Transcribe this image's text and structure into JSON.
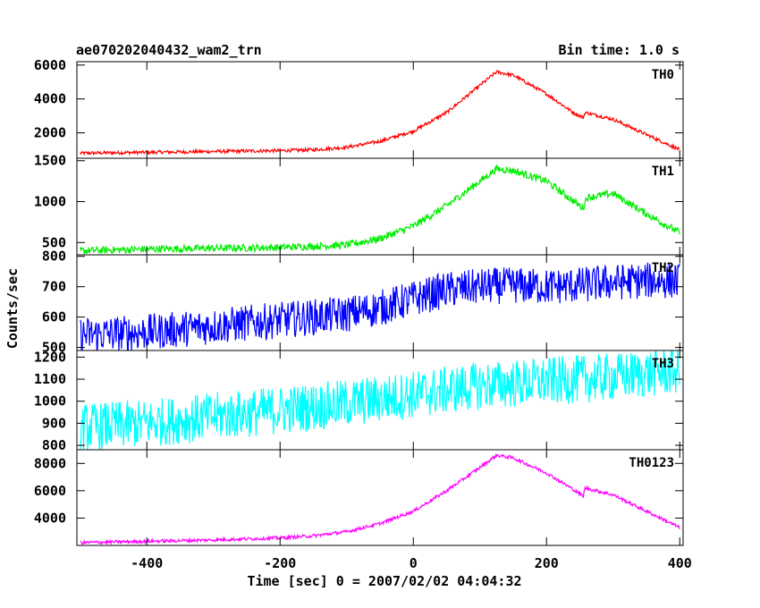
{
  "header": {
    "title": "ae070202040432_wam2_trn",
    "bin_time": "Bin time: 1.0 s"
  },
  "chart_data": {
    "type": "line",
    "xlabel": "Time [sec] 0 = 2007/02/02 04:04:32",
    "ylabel": "Counts/sec",
    "xlim": [
      -505,
      405
    ],
    "x_ticks": [
      -400,
      -200,
      0,
      200,
      400
    ],
    "grid": false,
    "legend": "none",
    "panels": [
      {
        "name": "TH0",
        "color": "#ff0000",
        "ylim": [
          500,
          6200
        ],
        "y_ticks": [
          2000,
          4000,
          6000
        ],
        "noise": 100,
        "points": [
          [
            -500,
            800
          ],
          [
            -400,
            850
          ],
          [
            -300,
            900
          ],
          [
            -200,
            950
          ],
          [
            -150,
            1000
          ],
          [
            -100,
            1150
          ],
          [
            -50,
            1500
          ],
          [
            0,
            2100
          ],
          [
            50,
            3200
          ],
          [
            100,
            4800
          ],
          [
            125,
            5600
          ],
          [
            150,
            5400
          ],
          [
            200,
            4300
          ],
          [
            240,
            3200
          ],
          [
            255,
            2900
          ],
          [
            258,
            3200
          ],
          [
            300,
            2800
          ],
          [
            350,
            1900
          ],
          [
            400,
            1000
          ]
        ]
      },
      {
        "name": "TH1",
        "color": "#00ee00",
        "ylim": [
          350,
          1530
        ],
        "y_ticks": [
          500,
          1000,
          1500
        ],
        "noise": 45,
        "points": [
          [
            -500,
            400
          ],
          [
            -400,
            420
          ],
          [
            -300,
            430
          ],
          [
            -200,
            440
          ],
          [
            -100,
            470
          ],
          [
            -50,
            550
          ],
          [
            0,
            700
          ],
          [
            50,
            950
          ],
          [
            100,
            1250
          ],
          [
            125,
            1400
          ],
          [
            150,
            1380
          ],
          [
            200,
            1250
          ],
          [
            250,
            950
          ],
          [
            255,
            920
          ],
          [
            260,
            1050
          ],
          [
            300,
            1100
          ],
          [
            350,
            850
          ],
          [
            400,
            620
          ]
        ]
      },
      {
        "name": "TH2",
        "color": "#0000ff",
        "ylim": [
          490,
          805
        ],
        "y_ticks": [
          500,
          600,
          700,
          800
        ],
        "noise": 60,
        "points": [
          [
            -500,
            540
          ],
          [
            -400,
            550
          ],
          [
            -300,
            570
          ],
          [
            -200,
            590
          ],
          [
            -100,
            610
          ],
          [
            -50,
            630
          ],
          [
            0,
            660
          ],
          [
            50,
            690
          ],
          [
            100,
            700
          ],
          [
            150,
            705
          ],
          [
            200,
            700
          ],
          [
            250,
            705
          ],
          [
            300,
            715
          ],
          [
            350,
            720
          ],
          [
            400,
            720
          ]
        ]
      },
      {
        "name": "TH3",
        "color": "#00ffff",
        "ylim": [
          780,
          1230
        ],
        "y_ticks": [
          800,
          900,
          1000,
          1100,
          1200
        ],
        "noise": 110,
        "points": [
          [
            -500,
            880
          ],
          [
            -400,
            900
          ],
          [
            -300,
            930
          ],
          [
            -200,
            960
          ],
          [
            -100,
            990
          ],
          [
            0,
            1030
          ],
          [
            100,
            1070
          ],
          [
            200,
            1090
          ],
          [
            300,
            1110
          ],
          [
            400,
            1140
          ]
        ]
      },
      {
        "name": "TH0123",
        "color": "#ff00ff",
        "ylim": [
          2000,
          9000
        ],
        "y_ticks": [
          4000,
          6000,
          8000
        ],
        "noise": 120,
        "points": [
          [
            -500,
            2200
          ],
          [
            -400,
            2300
          ],
          [
            -300,
            2400
          ],
          [
            -200,
            2550
          ],
          [
            -150,
            2700
          ],
          [
            -100,
            3000
          ],
          [
            -50,
            3600
          ],
          [
            0,
            4500
          ],
          [
            50,
            6000
          ],
          [
            100,
            7700
          ],
          [
            125,
            8600
          ],
          [
            150,
            8400
          ],
          [
            200,
            7300
          ],
          [
            240,
            6100
          ],
          [
            255,
            5600
          ],
          [
            258,
            6200
          ],
          [
            300,
            5700
          ],
          [
            350,
            4500
          ],
          [
            400,
            3300
          ]
        ]
      }
    ]
  }
}
